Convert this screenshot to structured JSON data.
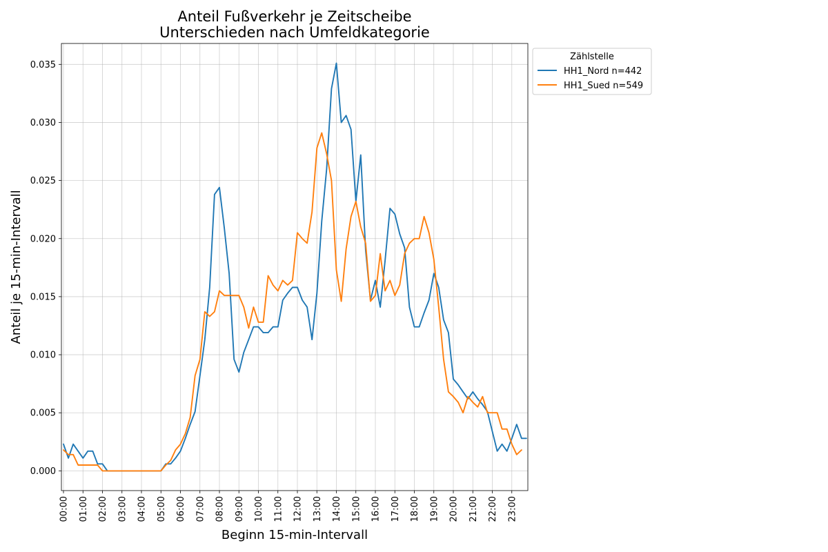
{
  "chart_data": {
    "type": "line",
    "title": "Anteil Fußverkehr je Zeitscheibe",
    "subtitle": "Unterschieden nach Umfeldkategorie",
    "xlabel": "Beginn 15-min-Intervall",
    "ylabel": "Anteil je 15-min-Intervall",
    "ylim": [
      -0.0017,
      0.0368
    ],
    "yticks": [
      0.0,
      0.005,
      0.01,
      0.015,
      0.02,
      0.025,
      0.03,
      0.035
    ],
    "ytick_labels": [
      "0.000",
      "0.005",
      "0.010",
      "0.015",
      "0.020",
      "0.025",
      "0.030",
      "0.035"
    ],
    "xtick_labels": [
      "00:00",
      "01:00",
      "02:00",
      "03:00",
      "04:00",
      "05:00",
      "06:00",
      "07:00",
      "08:00",
      "09:00",
      "10:00",
      "11:00",
      "12:00",
      "13:00",
      "14:00",
      "15:00",
      "16:00",
      "17:00",
      "18:00",
      "19:00",
      "20:00",
      "21:00",
      "22:00",
      "23:00"
    ],
    "grid": true,
    "legend": {
      "title": "Zählstelle",
      "placement": "outside-top-right"
    },
    "series": [
      {
        "name": "HH1_Nord n=442",
        "color": "#1f77b4",
        "values": [
          0.0023,
          0.0011,
          0.0023,
          0.0017,
          0.0011,
          0.0017,
          0.0017,
          0.0006,
          0.0006,
          0.0,
          0.0,
          0.0,
          0.0,
          0.0,
          0.0,
          0.0,
          0.0,
          0.0,
          0.0,
          0.0,
          0.0,
          0.0006,
          0.0006,
          0.0011,
          0.0017,
          0.0028,
          0.004,
          0.0051,
          0.0082,
          0.0113,
          0.0158,
          0.0238,
          0.0244,
          0.0209,
          0.017,
          0.0096,
          0.0085,
          0.0102,
          0.0113,
          0.0124,
          0.0124,
          0.0119,
          0.0119,
          0.0124,
          0.0124,
          0.0147,
          0.0153,
          0.0158,
          0.0158,
          0.0147,
          0.0141,
          0.0113,
          0.0153,
          0.0215,
          0.026,
          0.0329,
          0.0351,
          0.03,
          0.0306,
          0.0294,
          0.0232,
          0.0272,
          0.019,
          0.0147,
          0.0164,
          0.0141,
          0.0181,
          0.0226,
          0.0221,
          0.0204,
          0.0192,
          0.0141,
          0.0124,
          0.0124,
          0.0136,
          0.0147,
          0.017,
          0.0158,
          0.013,
          0.0119,
          0.0079,
          0.0074,
          0.0068,
          0.0062,
          0.0068,
          0.0062,
          0.0057,
          0.0051,
          0.0034,
          0.0017,
          0.0023,
          0.0017,
          0.0028,
          0.004,
          0.0028,
          0.0028
        ]
      },
      {
        "name": "HH1_Sued n=549",
        "color": "#ff7f0e",
        "values": [
          0.0018,
          0.0014,
          0.0014,
          0.0005,
          0.0005,
          0.0005,
          0.0005,
          0.0005,
          0.0,
          0.0,
          0.0,
          0.0,
          0.0,
          0.0,
          0.0,
          0.0,
          0.0,
          0.0,
          0.0,
          0.0,
          0.0,
          0.0005,
          0.0009,
          0.0018,
          0.0023,
          0.0032,
          0.0046,
          0.0082,
          0.0096,
          0.0137,
          0.0133,
          0.0137,
          0.0155,
          0.0151,
          0.0151,
          0.0151,
          0.0151,
          0.0141,
          0.0123,
          0.0141,
          0.0128,
          0.0128,
          0.0168,
          0.016,
          0.0155,
          0.0164,
          0.016,
          0.0164,
          0.0205,
          0.02,
          0.0196,
          0.0223,
          0.0278,
          0.0291,
          0.0273,
          0.025,
          0.0173,
          0.0146,
          0.0191,
          0.0219,
          0.0232,
          0.021,
          0.0196,
          0.0146,
          0.0151,
          0.0187,
          0.0155,
          0.0164,
          0.0151,
          0.016,
          0.0187,
          0.0196,
          0.02,
          0.02,
          0.0219,
          0.0205,
          0.0182,
          0.0141,
          0.0096,
          0.0068,
          0.0064,
          0.0059,
          0.005,
          0.0064,
          0.0059,
          0.0055,
          0.0064,
          0.005,
          0.005,
          0.005,
          0.0036,
          0.0036,
          0.0023,
          0.0014,
          0.0018
        ]
      }
    ]
  }
}
